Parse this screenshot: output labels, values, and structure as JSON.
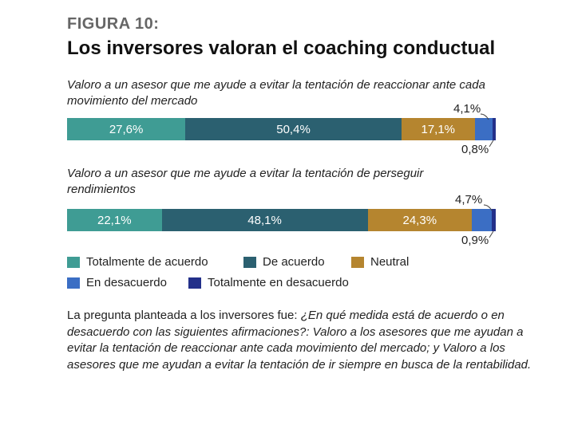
{
  "figure_label": "FIGURA 10:",
  "title": "Los inversores valoran el coaching conductual",
  "chart_data": {
    "type": "bar",
    "orientation": "horizontal-stacked-100",
    "categories": [
      "Valoro a un asesor que me ayude a evitar la tentación de reaccionar ante cada movimiento del mercado",
      "Valoro a un asesor que me ayude a evitar la tentación de perseguir rendimientos"
    ],
    "series": [
      {
        "name": "Totalmente de acuerdo",
        "color": "#3f9c94",
        "values": [
          27.6,
          22.1
        ],
        "labels": [
          "27,6%",
          "22,1%"
        ]
      },
      {
        "name": "De acuerdo",
        "color": "#2b6070",
        "values": [
          50.4,
          48.1
        ],
        "labels": [
          "50,4%",
          "48,1%"
        ]
      },
      {
        "name": "Neutral",
        "color": "#b5852f",
        "values": [
          17.1,
          24.3
        ],
        "labels": [
          "17,1%",
          "24,3%"
        ]
      },
      {
        "name": "En desacuerdo",
        "color": "#3b6ec4",
        "values": [
          4.1,
          4.7
        ],
        "labels": [
          "4,1%",
          "4,7%"
        ]
      },
      {
        "name": "Totalmente en desacuerdo",
        "color": "#23308a",
        "values": [
          0.8,
          0.9
        ],
        "labels": [
          "0,8%",
          "0,9%"
        ]
      }
    ],
    "legend_position": "bottom"
  },
  "note": {
    "plain": "La pregunta planteada a los inversores fue: ",
    "italic": "¿En qué medida está de acuerdo o en desacuerdo con las siguientes afirmaciones?: Valoro a los asesores que me ayudan a evitar la tentación de reaccionar ante cada movimiento del mercado; y Valoro a los asesores que me ayudan a evitar la tentación de ir siempre en busca de la rentabilidad."
  }
}
